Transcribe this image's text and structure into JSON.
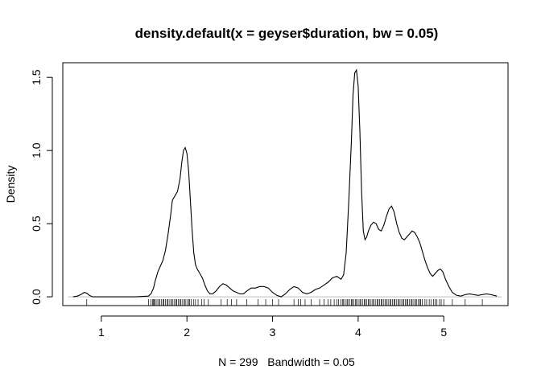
{
  "chart_data": {
    "type": "line",
    "title": "density.default(x = geyser$duration, bw = 0.05)",
    "xlabel": "N = 299   Bandwidth = 0.05",
    "ylabel": "Density",
    "xlim": [
      0.55,
      5.75
    ],
    "ylim": [
      -0.06,
      1.6
    ],
    "x_ticks": [
      1,
      2,
      3,
      4,
      5
    ],
    "y_ticks": [
      0.0,
      0.5,
      1.0,
      1.5
    ],
    "x_tick_labels": [
      "1",
      "2",
      "3",
      "4",
      "5"
    ],
    "y_tick_labels": [
      "0.0",
      "0.5",
      "1.0",
      "1.5"
    ],
    "baseline": 0,
    "grid": false,
    "series": [
      {
        "x": [
          0.67,
          0.72,
          0.76,
          0.8,
          0.83,
          0.86,
          0.9,
          0.95,
          1.0,
          1.2,
          1.4,
          1.55,
          1.58,
          1.61,
          1.63,
          1.66,
          1.69,
          1.72,
          1.75,
          1.78,
          1.81,
          1.83,
          1.86,
          1.89,
          1.92,
          1.94,
          1.96,
          1.98,
          2.0,
          2.02,
          2.04,
          2.06,
          2.08,
          2.1,
          2.12,
          2.15,
          2.18,
          2.21,
          2.24,
          2.27,
          2.3,
          2.34,
          2.38,
          2.42,
          2.46,
          2.5,
          2.54,
          2.58,
          2.62,
          2.66,
          2.7,
          2.75,
          2.8,
          2.85,
          2.9,
          2.95,
          3.0,
          3.05,
          3.1,
          3.15,
          3.2,
          3.25,
          3.3,
          3.35,
          3.4,
          3.45,
          3.5,
          3.55,
          3.6,
          3.65,
          3.7,
          3.75,
          3.8,
          3.83,
          3.86,
          3.89,
          3.92,
          3.94,
          3.96,
          3.98,
          4.0,
          4.02,
          4.04,
          4.06,
          4.08,
          4.1,
          4.12,
          4.15,
          4.18,
          4.21,
          4.24,
          4.27,
          4.3,
          4.33,
          4.36,
          4.39,
          4.42,
          4.45,
          4.48,
          4.51,
          4.54,
          4.57,
          4.6,
          4.63,
          4.66,
          4.69,
          4.72,
          4.75,
          4.78,
          4.81,
          4.84,
          4.87,
          4.9,
          4.93,
          4.96,
          4.99,
          5.02,
          5.06,
          5.1,
          5.15,
          5.2,
          5.25,
          5.3,
          5.35,
          5.4,
          5.45,
          5.5,
          5.55,
          5.62
        ],
        "y": [
          0.0,
          0.005,
          0.015,
          0.03,
          0.025,
          0.01,
          0.0,
          0.0,
          0.0,
          0.0,
          0.0,
          0.005,
          0.02,
          0.06,
          0.11,
          0.17,
          0.21,
          0.25,
          0.32,
          0.43,
          0.56,
          0.66,
          0.69,
          0.72,
          0.81,
          0.92,
          1.0,
          1.02,
          0.98,
          0.86,
          0.66,
          0.46,
          0.3,
          0.22,
          0.19,
          0.16,
          0.13,
          0.08,
          0.04,
          0.02,
          0.02,
          0.04,
          0.07,
          0.09,
          0.08,
          0.06,
          0.04,
          0.03,
          0.02,
          0.02,
          0.04,
          0.06,
          0.06,
          0.07,
          0.07,
          0.06,
          0.03,
          0.01,
          0.0,
          0.02,
          0.05,
          0.07,
          0.06,
          0.03,
          0.02,
          0.03,
          0.05,
          0.06,
          0.08,
          0.1,
          0.13,
          0.14,
          0.12,
          0.15,
          0.3,
          0.65,
          1.05,
          1.38,
          1.53,
          1.55,
          1.44,
          1.13,
          0.72,
          0.45,
          0.39,
          0.41,
          0.45,
          0.49,
          0.51,
          0.5,
          0.46,
          0.45,
          0.49,
          0.55,
          0.6,
          0.62,
          0.58,
          0.5,
          0.44,
          0.4,
          0.39,
          0.41,
          0.43,
          0.45,
          0.44,
          0.41,
          0.37,
          0.31,
          0.25,
          0.2,
          0.16,
          0.14,
          0.16,
          0.18,
          0.19,
          0.17,
          0.12,
          0.07,
          0.03,
          0.01,
          0.005,
          0.015,
          0.02,
          0.015,
          0.01,
          0.015,
          0.02,
          0.015,
          0.005
        ]
      }
    ],
    "rug": [
      0.83,
      1.55,
      1.58,
      1.6,
      1.61,
      1.62,
      1.63,
      1.65,
      1.67,
      1.68,
      1.7,
      1.72,
      1.73,
      1.75,
      1.77,
      1.78,
      1.8,
      1.82,
      1.83,
      1.85,
      1.87,
      1.88,
      1.9,
      1.92,
      1.93,
      1.95,
      1.97,
      1.98,
      2.0,
      2.02,
      2.03,
      2.05,
      2.08,
      2.1,
      2.13,
      2.17,
      2.2,
      2.25,
      2.4,
      2.47,
      2.52,
      2.58,
      2.7,
      2.83,
      2.92,
      3.0,
      3.07,
      3.25,
      3.3,
      3.33,
      3.38,
      3.45,
      3.55,
      3.6,
      3.65,
      3.68,
      3.72,
      3.75,
      3.77,
      3.8,
      3.82,
      3.83,
      3.85,
      3.87,
      3.88,
      3.9,
      3.92,
      3.93,
      3.95,
      3.97,
      3.98,
      4.0,
      4.02,
      4.03,
      4.05,
      4.07,
      4.08,
      4.1,
      4.12,
      4.13,
      4.15,
      4.17,
      4.18,
      4.2,
      4.22,
      4.23,
      4.25,
      4.27,
      4.28,
      4.3,
      4.32,
      4.33,
      4.35,
      4.37,
      4.38,
      4.4,
      4.42,
      4.43,
      4.45,
      4.47,
      4.48,
      4.5,
      4.52,
      4.53,
      4.55,
      4.57,
      4.58,
      4.6,
      4.62,
      4.63,
      4.65,
      4.67,
      4.68,
      4.7,
      4.72,
      4.73,
      4.75,
      4.78,
      4.8,
      4.83,
      4.85,
      4.88,
      4.9,
      4.92,
      4.95,
      4.97,
      5.0,
      5.1,
      5.25,
      5.45
    ]
  }
}
